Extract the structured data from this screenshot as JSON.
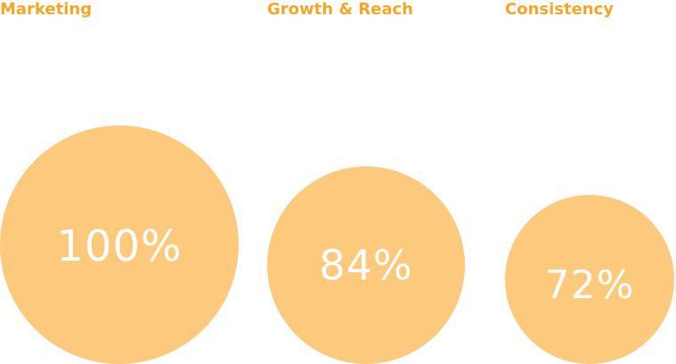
{
  "metrics": [
    {
      "label": "Marketing",
      "value_text": "100%",
      "value": 100
    },
    {
      "label": "Growth & Reach",
      "value_text": "84%",
      "value": 84
    },
    {
      "label": "Consistency",
      "value_text": "72%",
      "value": 72
    }
  ],
  "colors": {
    "title": "#f5a623",
    "bubble": "#fdc97c",
    "value_text": "#ffffff",
    "background": "#ffffff"
  }
}
